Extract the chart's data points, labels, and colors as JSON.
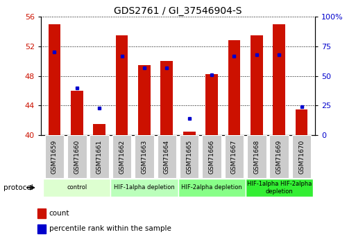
{
  "title": "GDS2761 / GI_37546904-S",
  "samples": [
    "GSM71659",
    "GSM71660",
    "GSM71661",
    "GSM71662",
    "GSM71663",
    "GSM71664",
    "GSM71665",
    "GSM71666",
    "GSM71667",
    "GSM71668",
    "GSM71669",
    "GSM71670"
  ],
  "count_values": [
    55.0,
    46.0,
    41.5,
    53.5,
    49.5,
    50.0,
    40.5,
    48.2,
    52.8,
    53.5,
    55.0,
    43.5
  ],
  "percentile_values": [
    70,
    40,
    23,
    67,
    57,
    57,
    14,
    51,
    67,
    68,
    68,
    24
  ],
  "ylim_left": [
    40,
    56
  ],
  "ylim_right": [
    0,
    100
  ],
  "yticks_left": [
    40,
    44,
    48,
    52,
    56
  ],
  "yticks_right": [
    0,
    25,
    50,
    75,
    100
  ],
  "bar_color": "#cc1100",
  "dot_color": "#0000cc",
  "bar_bottom": 40,
  "protocol_groups": [
    {
      "label": "control",
      "start": 0,
      "end": 3,
      "color": "#ddffd0"
    },
    {
      "label": "HIF-1alpha depletion",
      "start": 3,
      "end": 6,
      "color": "#bbffbb"
    },
    {
      "label": "HIF-2alpha depletion",
      "start": 6,
      "end": 9,
      "color": "#88ff88"
    },
    {
      "label": "HIF-1alpha HIF-2alpha\ndepletion",
      "start": 9,
      "end": 12,
      "color": "#33ee33"
    }
  ],
  "legend_count_label": "count",
  "legend_percentile_label": "percentile rank within the sample",
  "bg_color": "#ffffff",
  "tick_label_color_left": "#cc1100",
  "tick_label_color_right": "#0000cc",
  "xtick_bg_color": "#cccccc"
}
